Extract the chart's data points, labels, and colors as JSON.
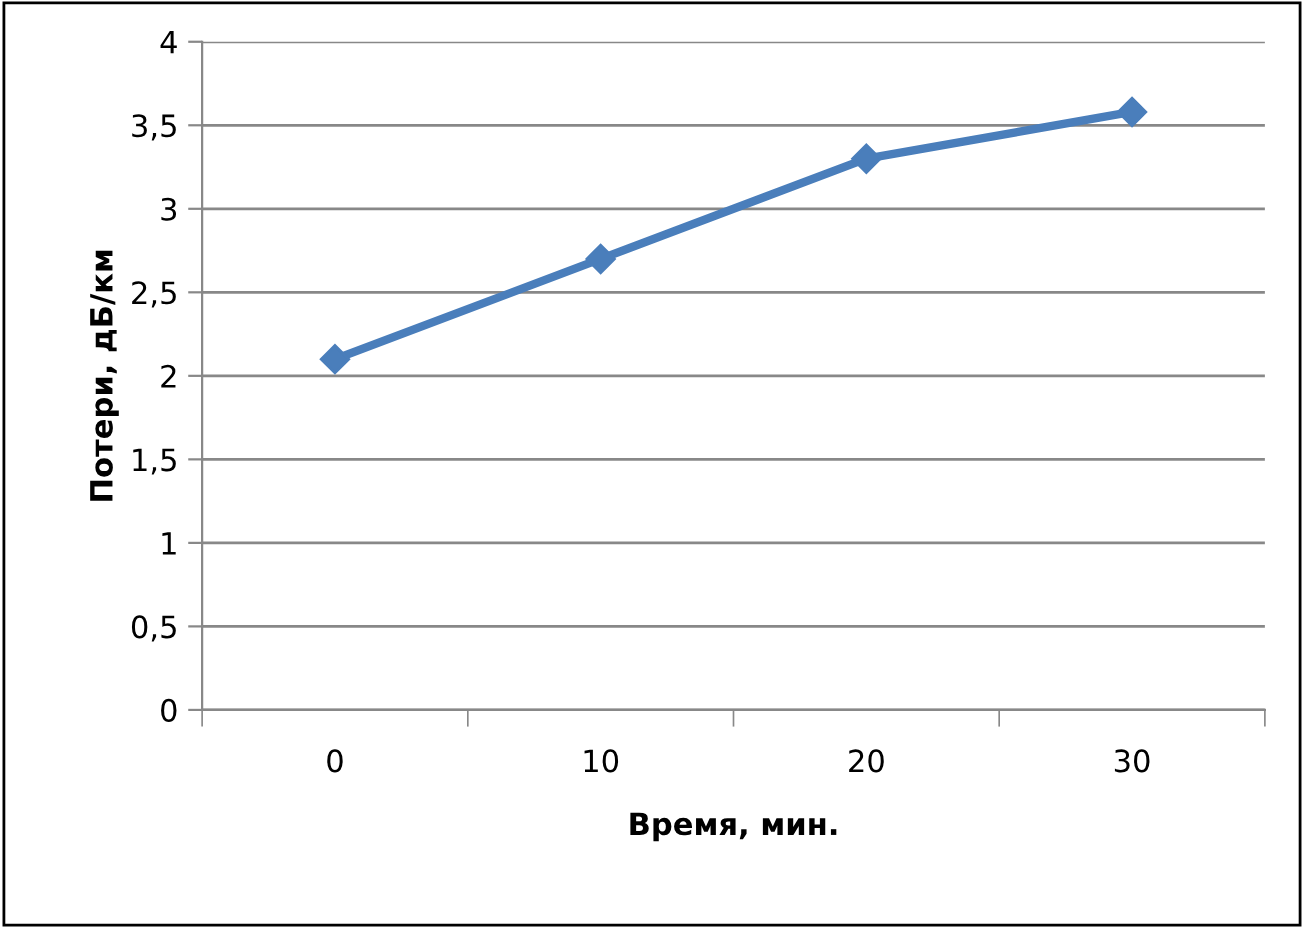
{
  "chart_data": {
    "type": "line",
    "xlabel": "Время, мин.",
    "ylabel": "Потери, дБ/км",
    "categories": [
      "0",
      "10",
      "20",
      "30"
    ],
    "series": [
      {
        "color": "#4a7ebb",
        "values": [
          2.1,
          2.7,
          3.3,
          3.58
        ]
      }
    ],
    "ylim": [
      0,
      4
    ],
    "yticks": [
      0,
      {
        "value": 0.5,
        "label": "0,5"
      },
      1,
      {
        "value": 1.5,
        "label": "1,5"
      },
      2,
      {
        "value": 2.5,
        "label": "2,5"
      },
      3,
      {
        "value": 3.5,
        "label": "3,5"
      },
      4
    ],
    "grid": "y",
    "marker": "diamond",
    "line_style": "solid",
    "legend": false
  }
}
